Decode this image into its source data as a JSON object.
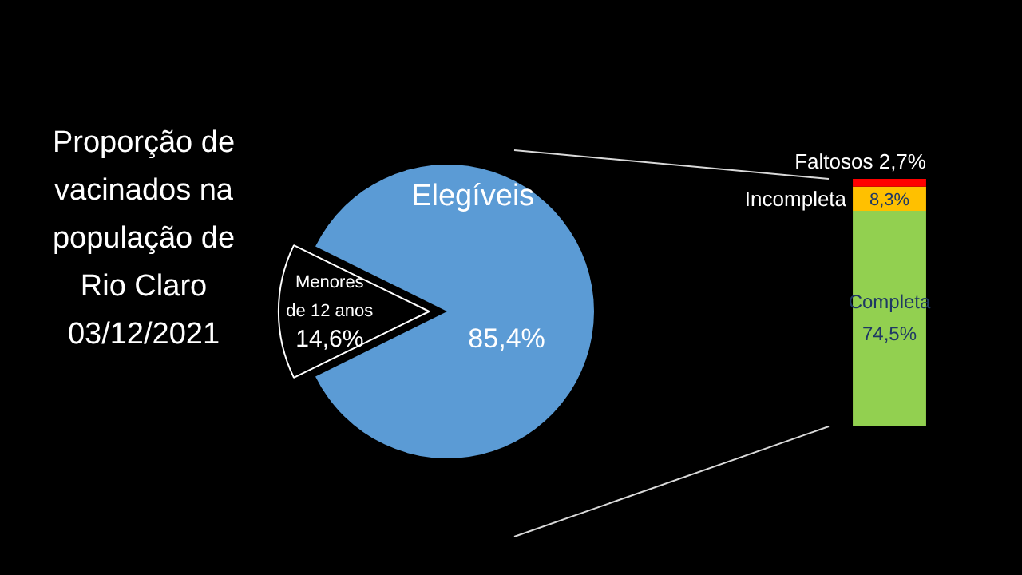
{
  "chart_data": [
    {
      "type": "pie",
      "title": "Proporção de vacinados na população de Rio Claro 03/12/2021",
      "categories": [
        "Menores de 12 anos",
        "Elegíveis"
      ],
      "values": [
        14.6,
        85.4
      ],
      "colors": [
        "#000000",
        "#5b9bd5"
      ],
      "value_labels": [
        "14,6%",
        "85,4%"
      ],
      "legend": false
    },
    {
      "type": "bar",
      "stacked": true,
      "categories": [
        null
      ],
      "series": [
        {
          "name": "Completa",
          "color": "#92d050",
          "values": [
            74.5
          ],
          "value_labels": [
            "74,5%"
          ]
        },
        {
          "name": "Incompleta",
          "color": "#ffc000",
          "values": [
            8.3
          ],
          "value_labels": [
            "8,3%"
          ]
        },
        {
          "name": "Faltosos",
          "color": "#ff0000",
          "values": [
            2.7
          ],
          "value_labels": [
            "2,7%"
          ]
        }
      ],
      "legend": false
    }
  ]
}
